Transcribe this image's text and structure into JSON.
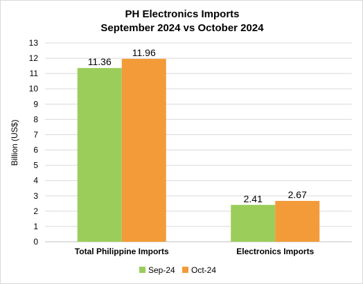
{
  "chart_data": {
    "type": "bar",
    "title_line1": "PH Electronics Imports",
    "title_line2": "September 2024 vs October 2024",
    "ylabel": "Billion (US$)",
    "xlabel": "",
    "ylim": [
      0,
      13
    ],
    "yticks": [
      "0",
      "1",
      "2",
      "3",
      "4",
      "5",
      "6",
      "7",
      "8",
      "9",
      "10",
      "11",
      "12",
      "13"
    ],
    "grid": true,
    "legend_position": "bottom",
    "categories": [
      "Total Philippine Imports",
      "Electronics Imports"
    ],
    "series": [
      {
        "name": "Sep-24",
        "color": "#9ACD5A",
        "values": [
          11.36,
          2.41
        ],
        "labels": [
          "11.36",
          "2.41"
        ]
      },
      {
        "name": "Oct-24",
        "color": "#F29B38",
        "values": [
          11.96,
          2.67
        ],
        "labels": [
          "11.96",
          "2.67"
        ]
      }
    ]
  }
}
